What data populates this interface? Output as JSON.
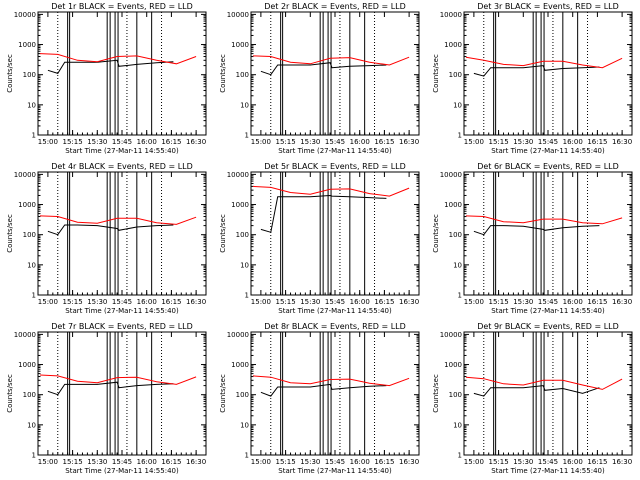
{
  "figure": {
    "xlabel": "Start Time (27-Mar-11 14:55:40)",
    "ylabel": "Counts/sec",
    "x_tick_labels": [
      "15:00",
      "15:15",
      "15:30",
      "15:45",
      "16:00",
      "16:15",
      "16:30"
    ],
    "y_tick_labels": [
      "1",
      "10",
      "100",
      "1000",
      "10000"
    ],
    "colors": {
      "events": "#000000",
      "lld": "#ff0000"
    }
  },
  "chart_data": [
    {
      "type": "line",
      "title": "Det 1r BLACK = Events, RED = LLD",
      "xlim": [
        14.9,
        16.6
      ],
      "ylim": [
        1,
        12000
      ],
      "yscale": "log",
      "grid": false,
      "series": [
        {
          "name": "Events",
          "color": "#000000",
          "x": [
            15.0,
            15.1,
            15.17,
            15.3,
            15.5,
            15.7,
            15.72,
            15.9,
            16.1,
            16.27
          ],
          "y": [
            140,
            110,
            260,
            260,
            260,
            300,
            190,
            220,
            250,
            270
          ]
        },
        {
          "name": "LLD",
          "color": "#ff0000",
          "x": [
            14.92,
            15.1,
            15.3,
            15.5,
            15.7,
            15.9,
            16.1,
            16.3,
            16.5
          ],
          "y": [
            500,
            470,
            300,
            270,
            400,
            420,
            300,
            230,
            400
          ]
        }
      ]
    },
    {
      "type": "line",
      "title": "Det 2r BLACK = Events, RED = LLD",
      "xlim": [
        14.9,
        16.6
      ],
      "ylim": [
        1,
        12000
      ],
      "yscale": "log",
      "grid": false,
      "series": [
        {
          "name": "Events",
          "color": "#000000",
          "x": [
            15.0,
            15.1,
            15.17,
            15.3,
            15.5,
            15.7,
            15.72,
            15.9,
            16.1,
            16.27
          ],
          "y": [
            130,
            100,
            210,
            210,
            210,
            250,
            170,
            190,
            200,
            210
          ]
        },
        {
          "name": "LLD",
          "color": "#ff0000",
          "x": [
            14.92,
            15.1,
            15.3,
            15.5,
            15.7,
            15.9,
            16.1,
            16.3,
            16.5
          ],
          "y": [
            420,
            400,
            260,
            230,
            350,
            370,
            260,
            210,
            380
          ]
        }
      ]
    },
    {
      "type": "line",
      "title": "Det 3r BLACK = Events, RED = LLD",
      "xlim": [
        14.9,
        16.6
      ],
      "ylim": [
        1,
        12000
      ],
      "yscale": "log",
      "grid": false,
      "series": [
        {
          "name": "Events",
          "color": "#000000",
          "x": [
            15.0,
            15.1,
            15.17,
            15.3,
            15.5,
            15.7,
            15.72,
            15.9,
            16.1,
            16.27
          ],
          "y": [
            110,
            90,
            170,
            170,
            170,
            200,
            140,
            160,
            170,
            180
          ]
        },
        {
          "name": "LLD",
          "color": "#ff0000",
          "x": [
            14.92,
            15.1,
            15.3,
            15.5,
            15.7,
            15.9,
            16.1,
            16.3,
            16.5
          ],
          "y": [
            380,
            300,
            220,
            200,
            280,
            280,
            210,
            170,
            350
          ]
        }
      ]
    },
    {
      "type": "line",
      "title": "Det 4r BLACK = Events, RED = LLD",
      "xlim": [
        14.9,
        16.6
      ],
      "ylim": [
        1,
        12000
      ],
      "yscale": "log",
      "grid": false,
      "series": [
        {
          "name": "Events",
          "color": "#000000",
          "x": [
            15.0,
            15.1,
            15.17,
            15.3,
            15.5,
            15.7,
            15.72,
            15.9,
            16.1,
            16.27
          ],
          "y": [
            130,
            100,
            210,
            210,
            200,
            160,
            140,
            180,
            200,
            210
          ]
        },
        {
          "name": "LLD",
          "color": "#ff0000",
          "x": [
            14.92,
            15.1,
            15.3,
            15.5,
            15.7,
            15.9,
            16.1,
            16.3,
            16.5
          ],
          "y": [
            420,
            400,
            260,
            240,
            350,
            350,
            250,
            220,
            380
          ]
        }
      ]
    },
    {
      "type": "line",
      "title": "Det 5r BLACK = Events, RED = LLD",
      "xlim": [
        14.9,
        16.6
      ],
      "ylim": [
        1,
        12000
      ],
      "yscale": "log",
      "grid": false,
      "series": [
        {
          "name": "Events",
          "color": "#000000",
          "x": [
            15.0,
            15.1,
            15.17,
            15.3,
            15.5,
            15.7,
            15.72,
            15.9,
            16.1,
            16.27
          ],
          "y": [
            150,
            120,
            1800,
            1800,
            1800,
            2000,
            1900,
            1800,
            1700,
            1600
          ]
        },
        {
          "name": "LLD",
          "color": "#ff0000",
          "x": [
            14.92,
            15.1,
            15.3,
            15.5,
            15.7,
            15.9,
            16.1,
            16.3,
            16.5
          ],
          "y": [
            4000,
            3700,
            2500,
            2200,
            3200,
            3300,
            2300,
            1900,
            3500
          ]
        }
      ]
    },
    {
      "type": "line",
      "title": "Det 6r BLACK = Events, RED = LLD",
      "xlim": [
        14.9,
        16.6
      ],
      "ylim": [
        1,
        12000
      ],
      "yscale": "log",
      "grid": false,
      "series": [
        {
          "name": "Events",
          "color": "#000000",
          "x": [
            15.0,
            15.1,
            15.17,
            15.3,
            15.5,
            15.7,
            15.72,
            15.9,
            16.1,
            16.27
          ],
          "y": [
            130,
            100,
            200,
            200,
            190,
            150,
            140,
            170,
            190,
            200
          ]
        },
        {
          "name": "LLD",
          "color": "#ff0000",
          "x": [
            14.92,
            15.1,
            15.3,
            15.5,
            15.7,
            15.9,
            16.1,
            16.3,
            16.5
          ],
          "y": [
            420,
            400,
            270,
            250,
            330,
            330,
            250,
            230,
            360
          ]
        }
      ]
    },
    {
      "type": "line",
      "title": "Det 7r BLACK = Events, RED = LLD",
      "xlim": [
        14.9,
        16.6
      ],
      "ylim": [
        1,
        12000
      ],
      "yscale": "log",
      "grid": false,
      "series": [
        {
          "name": "Events",
          "color": "#000000",
          "x": [
            15.0,
            15.1,
            15.17,
            15.3,
            15.5,
            15.7,
            15.72,
            15.9,
            16.1,
            16.27
          ],
          "y": [
            130,
            100,
            220,
            220,
            220,
            260,
            170,
            200,
            220,
            230
          ]
        },
        {
          "name": "LLD",
          "color": "#ff0000",
          "x": [
            14.92,
            15.1,
            15.3,
            15.5,
            15.7,
            15.9,
            16.1,
            16.3,
            16.5
          ],
          "y": [
            450,
            420,
            280,
            250,
            370,
            380,
            270,
            220,
            390
          ]
        }
      ]
    },
    {
      "type": "line",
      "title": "Det 8r BLACK = Events, RED = LLD",
      "xlim": [
        14.9,
        16.6
      ],
      "ylim": [
        1,
        12000
      ],
      "yscale": "log",
      "grid": false,
      "series": [
        {
          "name": "Events",
          "color": "#000000",
          "x": [
            15.0,
            15.1,
            15.17,
            15.3,
            15.5,
            15.7,
            15.72,
            15.9,
            16.1,
            16.27
          ],
          "y": [
            120,
            90,
            180,
            180,
            180,
            220,
            150,
            170,
            190,
            200
          ]
        },
        {
          "name": "LLD",
          "color": "#ff0000",
          "x": [
            14.92,
            15.1,
            15.3,
            15.5,
            15.7,
            15.9,
            16.1,
            16.3,
            16.5
          ],
          "y": [
            420,
            380,
            250,
            230,
            320,
            330,
            240,
            200,
            350
          ]
        }
      ]
    },
    {
      "type": "line",
      "title": "Det 9r BLACK = Events, RED = LLD",
      "xlim": [
        14.9,
        16.6
      ],
      "ylim": [
        1,
        12000
      ],
      "yscale": "log",
      "grid": false,
      "series": [
        {
          "name": "Events",
          "color": "#000000",
          "x": [
            15.0,
            15.1,
            15.17,
            15.3,
            15.5,
            15.7,
            15.72,
            15.9,
            16.1,
            16.27
          ],
          "y": [
            110,
            90,
            170,
            170,
            170,
            200,
            140,
            160,
            110,
            170
          ]
        },
        {
          "name": "LLD",
          "color": "#ff0000",
          "x": [
            14.92,
            15.1,
            15.3,
            15.5,
            15.7,
            15.9,
            16.1,
            16.3,
            16.5
          ],
          "y": [
            380,
            340,
            230,
            210,
            300,
            300,
            210,
            150,
            330
          ]
        }
      ]
    }
  ]
}
